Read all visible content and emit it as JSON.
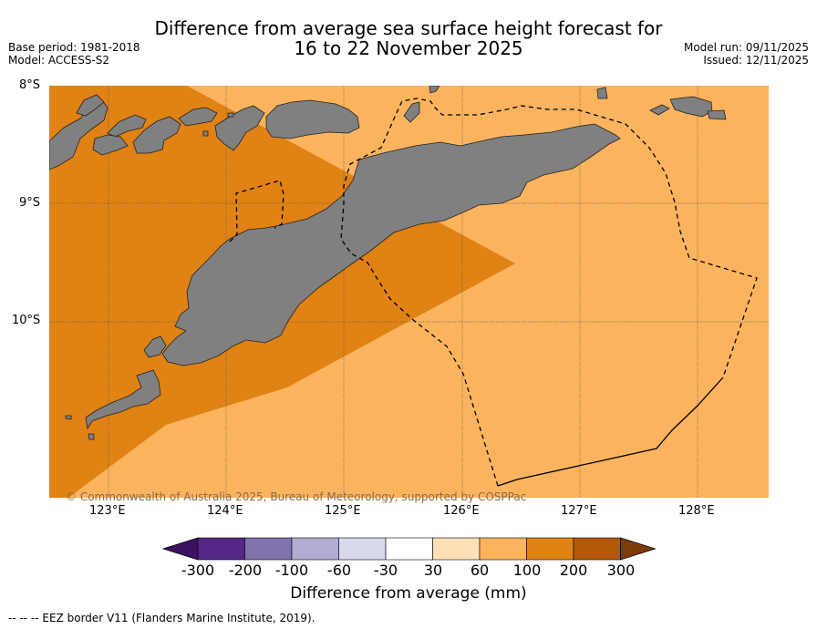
{
  "header": {
    "title_line1": "Difference from average sea surface height forecast for",
    "title_line2": "16 to 22 November 2025",
    "base_period": "Base period: 1981-2018",
    "model": "Model: ACCESS-S2",
    "model_run": "Model run: 09/11/2025",
    "issued": "Issued: 12/11/2025"
  },
  "map": {
    "lat_labels": [
      "8°S",
      "9°S",
      "10°S"
    ],
    "lon_labels": [
      "123°E",
      "124°E",
      "125°E",
      "126°E",
      "127°E",
      "128°E"
    ],
    "copyright": "© Commonwealth of Australia 2025, Bureau of Meteorology, supported by COSPPac",
    "colors": {
      "land": "#808080",
      "anom_100_200": "#e08214",
      "anom_60_100": "#fbb35e"
    }
  },
  "colorbar": {
    "ticks": [
      "-300",
      "-200",
      "-100",
      "-60",
      "-30",
      "30",
      "60",
      "100",
      "200",
      "300"
    ],
    "colors": [
      "#3b1260",
      "#542788",
      "#8073ac",
      "#b2abd2",
      "#d8daeb",
      "#ffffff",
      "#fee0b6",
      "#fbb35e",
      "#e08214",
      "#b35806",
      "#7f3b08"
    ],
    "title": "Difference from average (mm)"
  },
  "footer": {
    "legend": "--  --  -- EEZ border V11 (Flanders Marine Institute, 2019)."
  }
}
